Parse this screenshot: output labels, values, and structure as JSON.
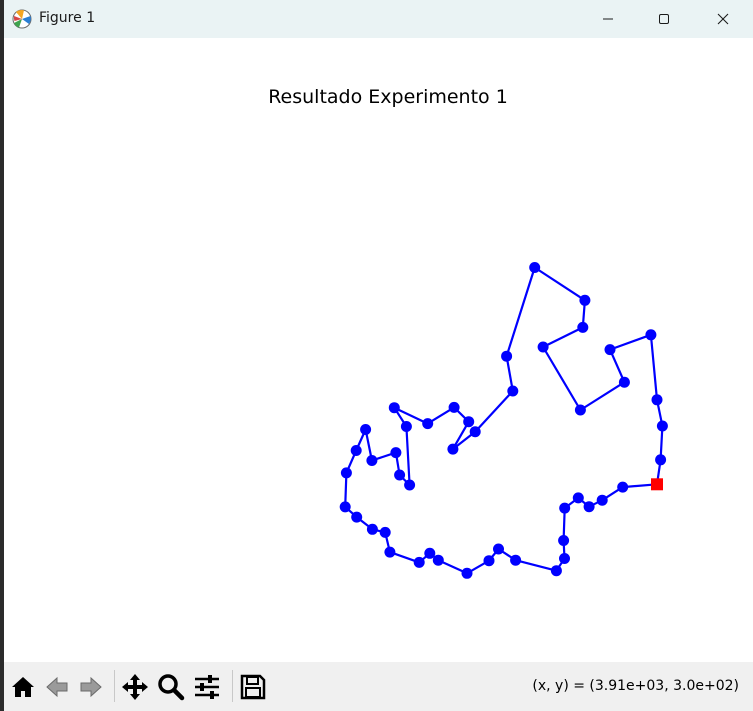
{
  "window": {
    "title": "Figure 1",
    "icon": "matplotlib-icon",
    "controls": [
      "minimize-icon",
      "maximize-icon",
      "close-icon"
    ]
  },
  "toolbar": {
    "items": [
      "home-icon",
      "back-arrow-icon",
      "forward-arrow-icon",
      "pan-move-icon",
      "zoom-magnifier-icon",
      "configure-subplots-icon",
      "save-floppy-icon"
    ],
    "coords": "(x, y) = (3.91e+03, 3.0e+02)"
  },
  "colors": {
    "route": "#0000ff",
    "start_marker": "#ff0000"
  },
  "chart_data": {
    "type": "line",
    "title": "Resultado Experimento 1",
    "axis_visible": false,
    "grid": false,
    "xlim": [
      0,
      4000
    ],
    "ylim": [
      0,
      2000
    ],
    "start": {
      "x": 3855,
      "y": 1476,
      "marker": "square",
      "color": "#ff0000"
    },
    "route": {
      "marker": "circle",
      "color": "#0000ff",
      "points": [
        [
          3855,
          1476
        ],
        [
          3880,
          1373
        ],
        [
          3892,
          1231
        ],
        [
          3855,
          1121
        ],
        [
          3813,
          848
        ],
        [
          3530,
          910
        ],
        [
          3630,
          1047
        ],
        [
          3326,
          1164
        ],
        [
          3068,
          899
        ],
        [
          3342,
          817
        ],
        [
          3357,
          703
        ],
        [
          3010,
          565
        ],
        [
          2816,
          938
        ],
        [
          2859,
          1084
        ],
        [
          2599,
          1255
        ],
        [
          2445,
          1328
        ],
        [
          2554,
          1213
        ],
        [
          2453,
          1153
        ],
        [
          2271,
          1221
        ],
        [
          2040,
          1154
        ],
        [
          2124,
          1233
        ],
        [
          2146,
          1479
        ],
        [
          2077,
          1437
        ],
        [
          2051,
          1343
        ],
        [
          1885,
          1376
        ],
        [
          1842,
          1246
        ],
        [
          1777,
          1334
        ],
        [
          1709,
          1428
        ],
        [
          1701,
          1571
        ],
        [
          1780,
          1614
        ],
        [
          1889,
          1665
        ],
        [
          1977,
          1678
        ],
        [
          2010,
          1761
        ],
        [
          2212,
          1804
        ],
        [
          2285,
          1766
        ],
        [
          2344,
          1795
        ],
        [
          2542,
          1850
        ],
        [
          2694,
          1797
        ],
        [
          2760,
          1748
        ],
        [
          2878,
          1795
        ],
        [
          3160,
          1839
        ],
        [
          3216,
          1788
        ],
        [
          3210,
          1712
        ],
        [
          3217,
          1576
        ],
        [
          3311,
          1533
        ],
        [
          3386,
          1570
        ],
        [
          3476,
          1543
        ],
        [
          3618,
          1488
        ]
      ]
    }
  }
}
